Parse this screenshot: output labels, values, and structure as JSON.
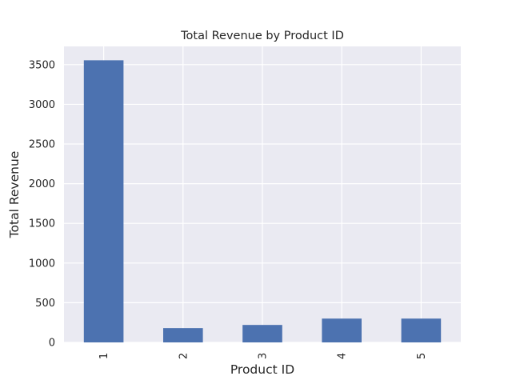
{
  "chart_data": {
    "type": "bar",
    "title": "Total Revenue by Product ID",
    "xlabel": "Product ID",
    "ylabel": "Total Revenue",
    "categories": [
      "1",
      "2",
      "3",
      "4",
      "5"
    ],
    "values": [
      3555,
      180,
      220,
      300,
      300
    ],
    "ylim": [
      0,
      3730
    ],
    "yticks": [
      0,
      500,
      1000,
      1500,
      2000,
      2500,
      3000,
      3500
    ],
    "ytick_labels": [
      "0",
      "500",
      "1000",
      "1500",
      "2000",
      "2500",
      "3000",
      "3500"
    ],
    "grid": true,
    "legend": "none",
    "x_tick_rotation": -90
  },
  "colors": {
    "plot_background": "#eaeaf2",
    "grid": "#ffffff",
    "bar": "#4c72b0",
    "text": "#262626"
  }
}
